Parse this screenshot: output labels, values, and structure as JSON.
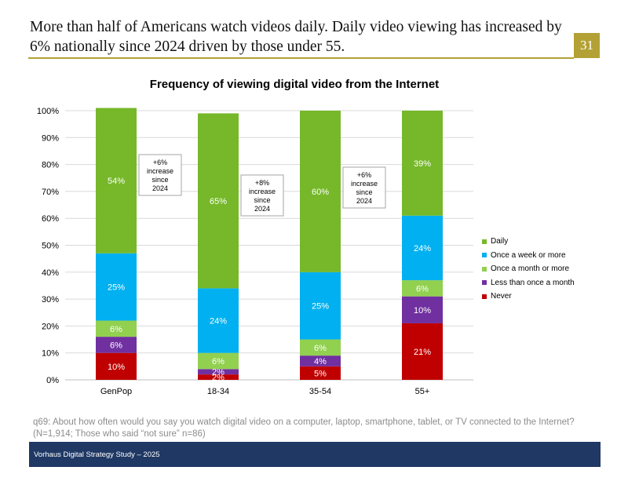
{
  "header": {
    "headline": "More than half of Americans watch videos daily. Daily video viewing has increased by 6% nationally since 2024 driven by those under 55.",
    "page_number": "31",
    "accent_color": "#b3a135"
  },
  "chart_data": {
    "type": "bar",
    "stacked": true,
    "title": "Frequency of viewing digital video from the Internet",
    "xlabel": "",
    "ylabel": "",
    "ylim": [
      0,
      100
    ],
    "y_ticks": [
      "0%",
      "10%",
      "20%",
      "30%",
      "40%",
      "50%",
      "60%",
      "70%",
      "80%",
      "90%",
      "100%"
    ],
    "categories": [
      "GenPop",
      "18-34",
      "35-54",
      "55+"
    ],
    "series": [
      {
        "name": "Never",
        "color": "#c00000",
        "values": [
          10,
          2,
          5,
          21
        ],
        "labels": [
          "10%",
          "2%",
          "5%",
          "21%"
        ]
      },
      {
        "name": "Less than once a month",
        "color": "#7030a0",
        "values": [
          6,
          2,
          4,
          10
        ],
        "labels": [
          "6%",
          "2%",
          "4%",
          "10%"
        ]
      },
      {
        "name": "Once a month or more",
        "color": "#92d050",
        "values": [
          6,
          6,
          6,
          6
        ],
        "labels": [
          "6%",
          "6%",
          "6%",
          "6%"
        ]
      },
      {
        "name": "Once a week or more",
        "color": "#00b0f0",
        "values": [
          25,
          24,
          25,
          24
        ],
        "labels": [
          "25%",
          "24%",
          "25%",
          "24%"
        ]
      },
      {
        "name": "Daily",
        "color": "#76b82a",
        "values": [
          54,
          65,
          60,
          39
        ],
        "labels": [
          "54%",
          "65%",
          "60%",
          "39%"
        ]
      }
    ],
    "legend_position": "right",
    "legend_order": [
      "Daily",
      "Once a week or more",
      "Once a month or more",
      "Less than once a month",
      "Never"
    ],
    "grid": true,
    "annotations": [
      {
        "category": "GenPop",
        "lines": [
          "+6%",
          "increase",
          "since",
          "2024"
        ]
      },
      {
        "category": "18-34",
        "lines": [
          "+8%",
          "increase",
          "since",
          "2024"
        ]
      },
      {
        "category": "35-54",
        "lines": [
          "+6%",
          "increase",
          "since",
          "2024"
        ]
      }
    ]
  },
  "legend": [
    {
      "label": "Daily",
      "color": "#76b82a"
    },
    {
      "label": "Once a week or more",
      "color": "#00b0f0"
    },
    {
      "label": "Once a month or more",
      "color": "#92d050"
    },
    {
      "label": "Less than once a month",
      "color": "#7030a0"
    },
    {
      "label": "Never",
      "color": "#c00000"
    }
  ],
  "note": "q69: About how often would you say you watch digital video on a computer, laptop, smartphone, tablet, or TV connected to the Internet? (N=1,914; Those who said “not sure” n=86)",
  "footer": {
    "text": "Vorhaus Digital Strategy Study – 2025",
    "bar_color": "#1f3864"
  }
}
